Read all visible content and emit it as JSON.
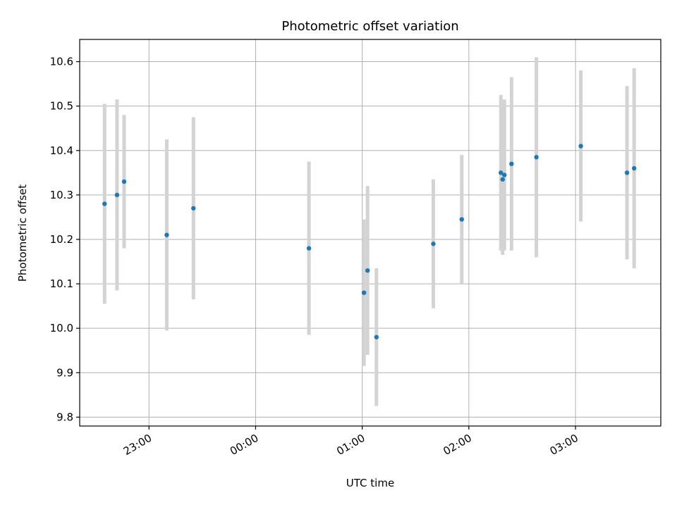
{
  "chart_data": {
    "type": "scatter",
    "title": "Photometric offset variation",
    "xlabel": "UTC time",
    "ylabel": "Photometric offset",
    "grid": true,
    "x_ticks": [
      "23:00",
      "00:00",
      "01:00",
      "02:00",
      "03:00"
    ],
    "x_tick_hours": [
      23,
      24,
      25,
      26,
      27
    ],
    "xlim_hours": [
      22.35,
      27.8
    ],
    "y_ticks": [
      "9.8",
      "9.9",
      "10.0",
      "10.1",
      "10.2",
      "10.3",
      "10.4",
      "10.5",
      "10.6"
    ],
    "ylim": [
      9.78,
      10.65
    ],
    "colors": {
      "point": "#1f77b4",
      "errorbar": "#d3d3d3"
    },
    "series": [
      {
        "x": [
          "22:35",
          "22:42",
          "22:46",
          "23:10",
          "23:25",
          "00:30",
          "01:01",
          "01:03",
          "01:08",
          "01:40",
          "01:56",
          "02:18",
          "02:19",
          "02:20",
          "02:24",
          "02:38",
          "03:03",
          "03:29",
          "03:33"
        ],
        "y": [
          10.28,
          10.3,
          10.33,
          10.21,
          10.27,
          10.18,
          10.08,
          10.13,
          9.98,
          10.19,
          10.245,
          10.35,
          10.335,
          10.345,
          10.37,
          10.385,
          10.41,
          10.35,
          10.36
        ],
        "yerr": [
          0.225,
          0.215,
          0.15,
          0.215,
          0.205,
          0.195,
          0.165,
          0.19,
          0.155,
          0.145,
          0.145,
          0.175,
          0.17,
          0.17,
          0.195,
          0.225,
          0.17,
          0.195,
          0.225
        ]
      }
    ]
  }
}
